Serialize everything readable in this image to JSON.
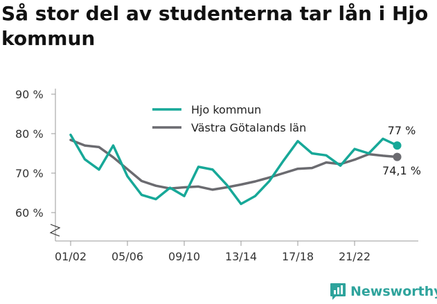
{
  "title": "Så stor del av studenterna tar lån i Hjo kommun",
  "brand": "Newsworthy",
  "colors": {
    "hjo": "#17a898",
    "vg": "#6b6b70",
    "axis": "#9a9a9a",
    "brand": "#2ea39c"
  },
  "chart_data": {
    "type": "line",
    "x": [
      "01/02",
      "02/03",
      "03/04",
      "04/05",
      "05/06",
      "06/07",
      "07/08",
      "08/09",
      "09/10",
      "10/11",
      "11/12",
      "12/13",
      "13/14",
      "14/15",
      "15/16",
      "16/17",
      "17/18",
      "18/19",
      "19/20",
      "20/21",
      "21/22",
      "22/23",
      "23/24",
      "24/25"
    ],
    "x_tick_labels": [
      "01/02",
      "05/06",
      "09/10",
      "13/14",
      "17/18",
      "21/22"
    ],
    "series": [
      {
        "name": "Hjo kommun",
        "color": "#17a898",
        "values": [
          79.7,
          73.5,
          70.9,
          77.0,
          69.2,
          64.5,
          63.4,
          66.3,
          64.2,
          71.6,
          70.9,
          67.0,
          62.2,
          64.2,
          68.0,
          73.2,
          78.1,
          75.0,
          74.5,
          71.9,
          76.1,
          75.0,
          78.7,
          77.0
        ],
        "end_label": "77 %"
      },
      {
        "name": "Västra Götalands län",
        "color": "#6b6b70",
        "values": [
          78.4,
          77.0,
          76.6,
          74.0,
          71.0,
          68.0,
          66.8,
          66.1,
          66.4,
          66.6,
          65.8,
          66.4,
          67.1,
          67.9,
          68.9,
          70.0,
          71.1,
          71.3,
          72.7,
          72.3,
          73.4,
          74.8,
          74.4,
          74.1
        ],
        "end_label": "74,1 %"
      }
    ],
    "y_ticks": [
      {
        "value": 60,
        "label": "60 %"
      },
      {
        "value": 70,
        "label": "70 %"
      },
      {
        "value": 80,
        "label": "80 %"
      },
      {
        "value": 90,
        "label": "90 %"
      }
    ],
    "ylim": [
      55,
      92
    ],
    "y_axis_break": true,
    "grid": false,
    "legend_position": "top-center"
  }
}
